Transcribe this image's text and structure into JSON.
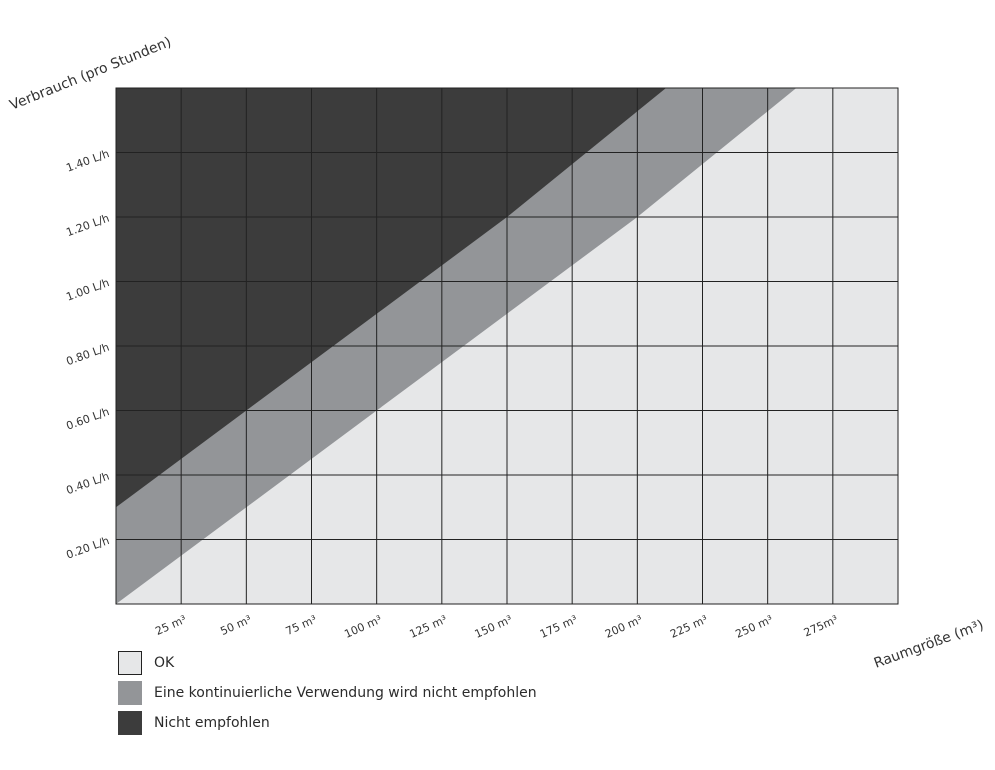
{
  "chart_data": {
    "type": "area",
    "xlabel": "Raumgröße (m³)",
    "ylabel": "Verbrauch (pro Stunden)",
    "x_ticks": [
      {
        "value": 25,
        "label": "25 m³"
      },
      {
        "value": 50,
        "label": "50 m³"
      },
      {
        "value": 75,
        "label": "75 m³"
      },
      {
        "value": 100,
        "label": "100 m³"
      },
      {
        "value": 125,
        "label": "125 m³"
      },
      {
        "value": 150,
        "label": "150 m³"
      },
      {
        "value": 175,
        "label": "175 m³"
      },
      {
        "value": 200,
        "label": "200 m³"
      },
      {
        "value": 225,
        "label": "225 m³"
      },
      {
        "value": 250,
        "label": "250 m³"
      },
      {
        "value": 275,
        "label": "275m³"
      }
    ],
    "y_ticks": [
      {
        "value": 0.2,
        "label": "0.20 L/h"
      },
      {
        "value": 0.4,
        "label": "0.40 L/h"
      },
      {
        "value": 0.6,
        "label": "0.60 L/h"
      },
      {
        "value": 0.8,
        "label": "0.80 L/h"
      },
      {
        "value": 1.0,
        "label": "1.00 L/h"
      },
      {
        "value": 1.2,
        "label": "1.20 L/h"
      },
      {
        "value": 1.4,
        "label": "1.40 L/h"
      }
    ],
    "xlim": [
      0,
      300
    ],
    "ylim": [
      0,
      1.6
    ],
    "grid": true,
    "series": [
      {
        "name": "OK",
        "color": "#e6e7e8",
        "region": "below lower boundary"
      },
      {
        "name": "Eine kontinuierliche Verwendung wird nicht empfohlen",
        "color": "#939598",
        "region": "between boundaries",
        "lower_boundary": [
          [
            0,
            0.0
          ],
          [
            100,
            0.6
          ],
          [
            150,
            0.9
          ],
          [
            200,
            1.2
          ],
          [
            261,
            1.6
          ]
        ]
      },
      {
        "name": "Nicht empfohlen",
        "color": "#3c3c3c",
        "region": "above upper boundary",
        "upper_boundary": [
          [
            0,
            0.3
          ],
          [
            50,
            0.6
          ],
          [
            100,
            0.9
          ],
          [
            150,
            1.2
          ],
          [
            211,
            1.6
          ]
        ]
      }
    ],
    "legend_placement": "bottom-left"
  }
}
